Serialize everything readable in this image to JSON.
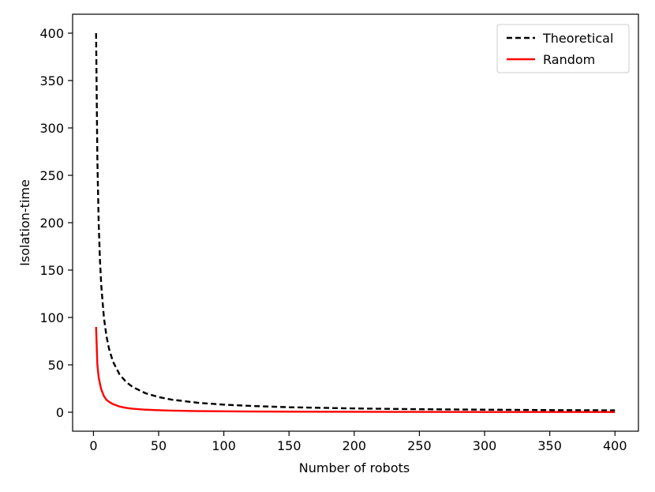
{
  "chart_data": {
    "type": "line",
    "title": "",
    "xlabel": "Number of robots",
    "ylabel": "Isolation-time",
    "xlim": [
      -16,
      418
    ],
    "ylim": [
      -20,
      420
    ],
    "xticks": [
      0,
      50,
      100,
      150,
      200,
      250,
      300,
      350,
      400
    ],
    "yticks": [
      0,
      50,
      100,
      150,
      200,
      250,
      300,
      350,
      400
    ],
    "grid": false,
    "legend_position": "top-right",
    "series": [
      {
        "name": "Theoretical",
        "color": "#000000",
        "linestyle": "dashed",
        "x": [
          2,
          3,
          4,
          5,
          6,
          8,
          10,
          12,
          15,
          20,
          25,
          30,
          40,
          50,
          60,
          80,
          100,
          120,
          150,
          200,
          250,
          300,
          350,
          400
        ],
        "y": [
          400,
          266.7,
          200,
          160,
          133.3,
          100,
          80,
          66.7,
          53.3,
          40,
          32,
          26.7,
          20,
          16,
          13.3,
          10,
          8,
          6.7,
          5.3,
          4,
          3.2,
          2.7,
          2.3,
          2
        ]
      },
      {
        "name": "Random",
        "color": "#ff0000",
        "linestyle": "solid",
        "x": [
          2,
          3,
          4,
          5,
          6,
          8,
          10,
          12,
          15,
          20,
          25,
          30,
          40,
          50,
          60,
          80,
          100,
          120,
          150,
          200,
          250,
          300,
          350,
          400
        ],
        "y": [
          90,
          50,
          37,
          30,
          24,
          17,
          13,
          11,
          8.5,
          6,
          4.6,
          3.7,
          2.7,
          2.1,
          1.7,
          1.2,
          0.95,
          0.78,
          0.62,
          0.46,
          0.36,
          0.3,
          0.26,
          0.22
        ]
      }
    ]
  }
}
